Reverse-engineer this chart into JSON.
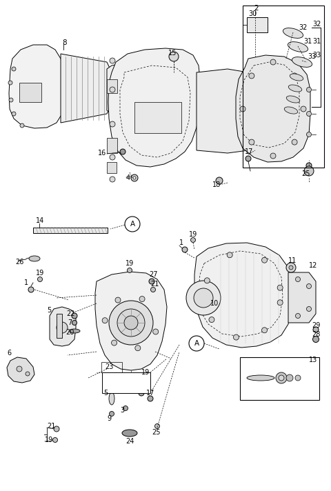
{
  "bg_color": "#ffffff",
  "figsize": [
    4.8,
    7.12
  ],
  "dpi": 100,
  "line_color": "#000000",
  "gray_light": "#d0d0d0",
  "gray_mid": "#a0a0a0",
  "gray_dark": "#606060"
}
